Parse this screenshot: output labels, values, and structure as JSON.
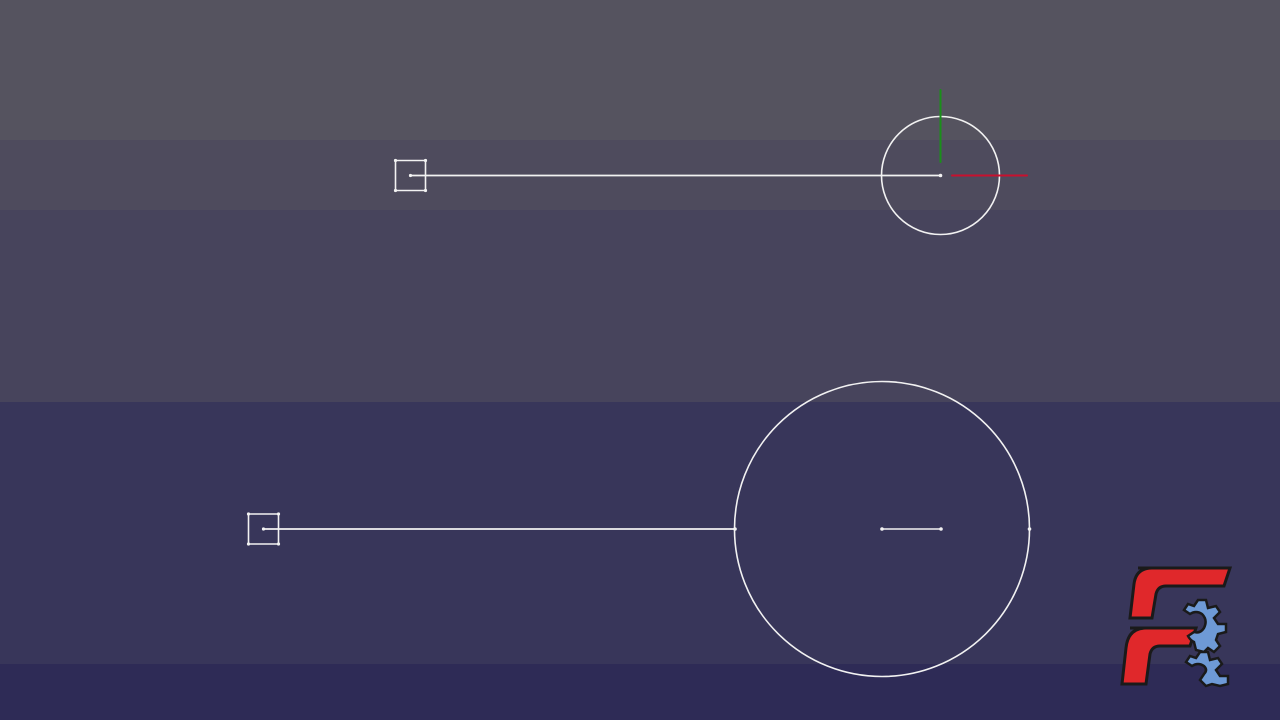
{
  "app": {
    "name": "FreeCAD"
  },
  "viewport": {
    "background_bands": [
      "#55535f",
      "#4e4b5d",
      "#47445c",
      "#38365a",
      "#2e2b56"
    ]
  },
  "colors": {
    "sketch_line": "#f2f2f2",
    "axis_x": "#c8102e",
    "axis_y": "#1a8f1a",
    "logo_red": "#e0282b",
    "logo_gear": "#6e9ad6",
    "logo_outline": "#1a1a1a"
  },
  "icons": {
    "logo": "freecad-logo-icon",
    "axis_cross": "axis-cross-icon"
  }
}
